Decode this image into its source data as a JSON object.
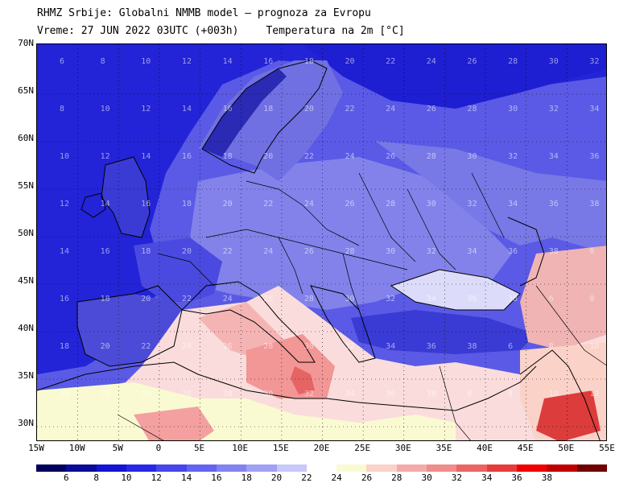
{
  "header": {
    "title": "RHMZ Srbije: Globalni NMMB model – prognoza za Evropu",
    "run": "Vreme: 27 JUN 2022 03UTC (+003h)",
    "parameter": "Temperatura na 2m [°C]"
  },
  "map": {
    "lat_labels": [
      "70N",
      "65N",
      "60N",
      "55N",
      "50N",
      "45N",
      "40N",
      "35N",
      "30N"
    ],
    "lon_labels": [
      "15W",
      "10W",
      "5W",
      "0",
      "5E",
      "10E",
      "15E",
      "20E",
      "25E",
      "30E",
      "35E",
      "40E",
      "45E",
      "50E",
      "55E"
    ],
    "grid_labels": [
      "6",
      "8",
      "10",
      "12",
      "14",
      "16",
      "18",
      "20",
      "22",
      "24",
      "26",
      "28",
      "30",
      "32",
      "34",
      "36",
      "38"
    ],
    "colors": {
      "sea_cold": "#1e1ed2",
      "cold": "#4646dc",
      "cool": "#7878e6",
      "mild": "#a5a5f0",
      "pale": "#d2d2fa",
      "warm_sea": "#fadcdc",
      "warm": "#f5a0a0",
      "hot": "#e66464",
      "very_hot": "#dc3c3c"
    }
  },
  "colorbar": {
    "labels": [
      "6",
      "8",
      "10",
      "12",
      "14",
      "16",
      "18",
      "20",
      "22",
      "24",
      "26",
      "28",
      "30",
      "32",
      "34",
      "36",
      "38"
    ],
    "colors": [
      "#00005a",
      "#0a0a96",
      "#1414d2",
      "#2828e6",
      "#4646ea",
      "#6464ee",
      "#8282f0",
      "#a0a0f4",
      "#c8c8fa",
      "#ffffff",
      "#fafad2",
      "#fad2c8",
      "#f5aaaa",
      "#f08c8c",
      "#eb6464",
      "#e63c3c",
      "#f00000",
      "#be0000",
      "#6e0000"
    ]
  }
}
